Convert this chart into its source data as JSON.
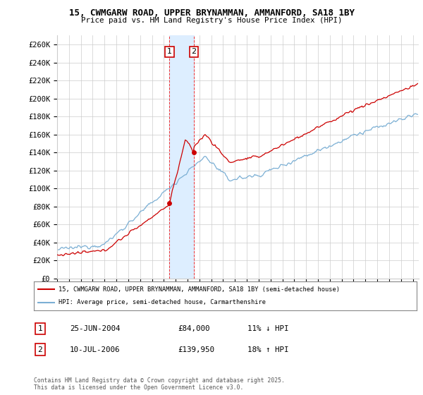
{
  "title1": "15, CWMGARW ROAD, UPPER BRYNAMMAN, AMMANFORD, SA18 1BY",
  "title2": "Price paid vs. HM Land Registry's House Price Index (HPI)",
  "ylabel_ticks": [
    "£0",
    "£20K",
    "£40K",
    "£60K",
    "£80K",
    "£100K",
    "£120K",
    "£140K",
    "£160K",
    "£180K",
    "£200K",
    "£220K",
    "£240K",
    "£260K"
  ],
  "ytick_values": [
    0,
    20000,
    40000,
    60000,
    80000,
    100000,
    120000,
    140000,
    160000,
    180000,
    200000,
    220000,
    240000,
    260000
  ],
  "ylim": [
    0,
    270000
  ],
  "xlim_start": 1995.0,
  "xlim_end": 2025.5,
  "line1_color": "#cc0000",
  "line2_color": "#7bafd4",
  "shading_color": "#ddeeff",
  "grid_color": "#cccccc",
  "background_color": "#ffffff",
  "sale1_x": 2004.48,
  "sale1_y": 84000,
  "sale2_x": 2006.53,
  "sale2_y": 139950,
  "legend_label1": "15, CWMGARW ROAD, UPPER BRYNAMMAN, AMMANFORD, SA18 1BY (semi-detached house)",
  "legend_label2": "HPI: Average price, semi-detached house, Carmarthenshire",
  "table_row1": [
    "1",
    "25-JUN-2004",
    "£84,000",
    "11% ↓ HPI"
  ],
  "table_row2": [
    "2",
    "10-JUL-2006",
    "£139,950",
    "18% ↑ HPI"
  ],
  "footnote": "Contains HM Land Registry data © Crown copyright and database right 2025.\nThis data is licensed under the Open Government Licence v3.0."
}
